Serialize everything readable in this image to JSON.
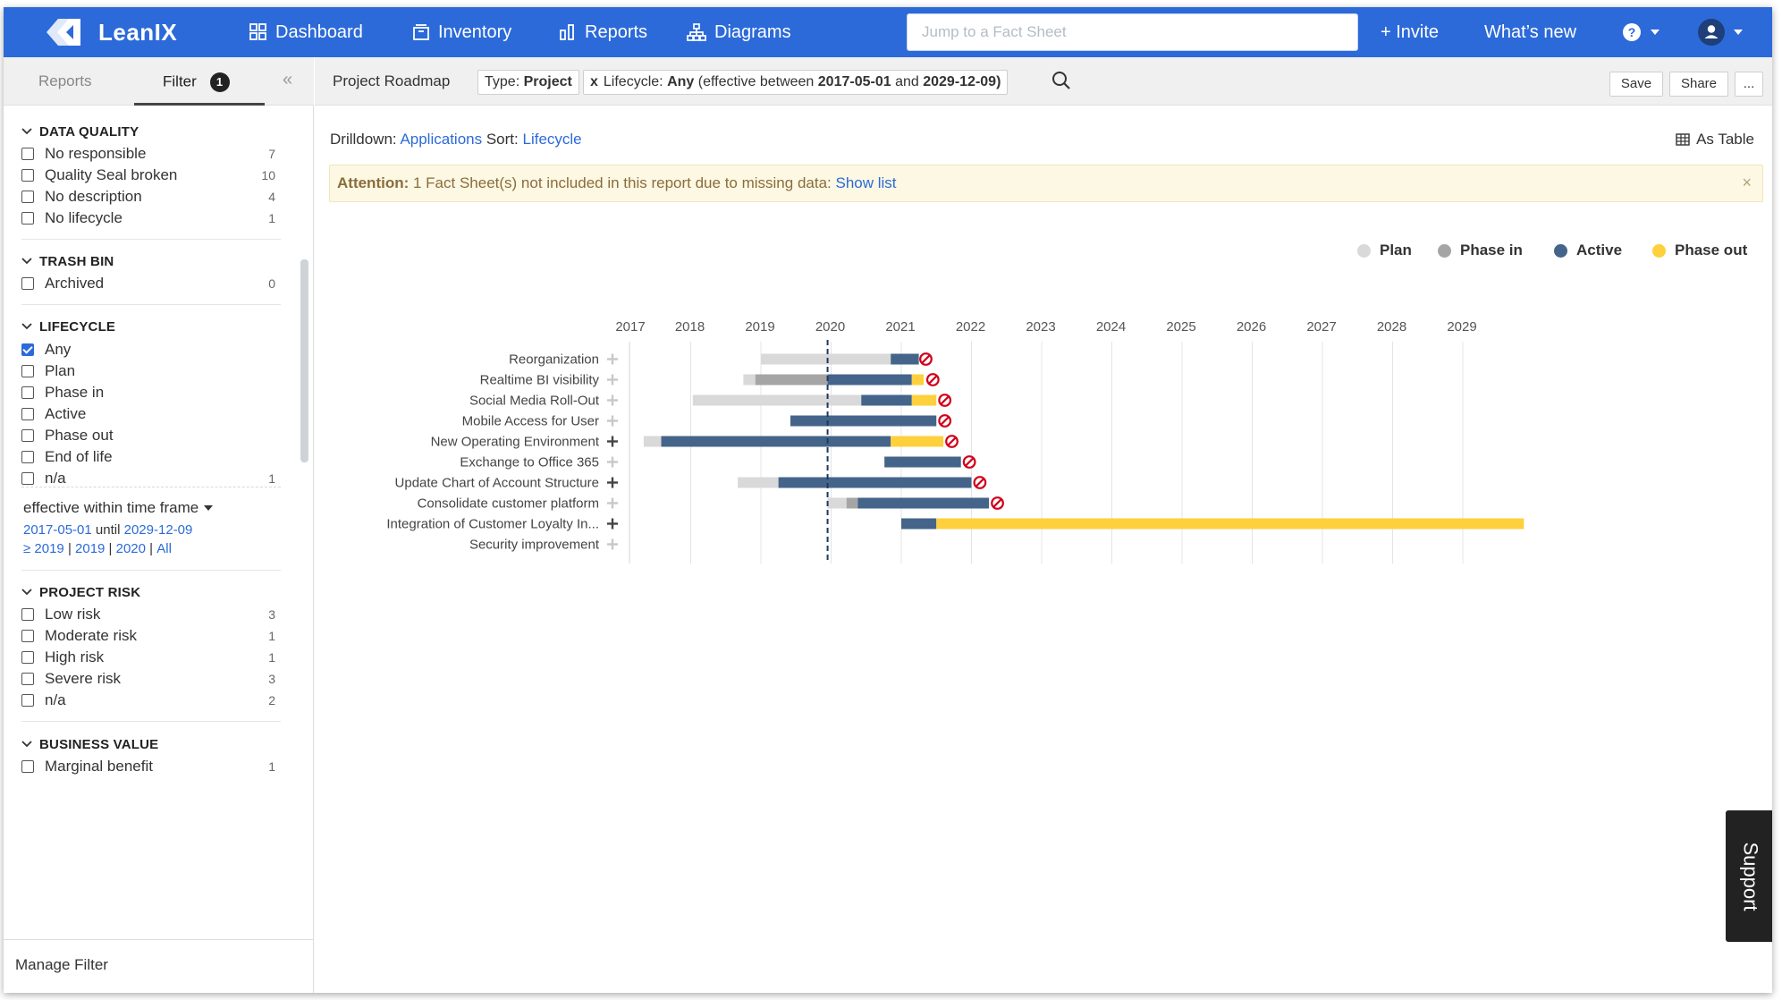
{
  "topnav": {
    "brand": "LeanIX",
    "items": [
      {
        "label": "Dashboard",
        "icon": "dashboard-icon"
      },
      {
        "label": "Inventory",
        "icon": "inventory-icon"
      },
      {
        "label": "Reports",
        "icon": "reports-icon"
      },
      {
        "label": "Diagrams",
        "icon": "diagrams-icon"
      }
    ],
    "search_placeholder": "Jump to a Fact Sheet",
    "invite": "+ Invite",
    "whats_new": "What’s new",
    "accent_color": "#2c6ad9"
  },
  "sidebar": {
    "tabs": {
      "reports": "Reports",
      "filter": "Filter",
      "filter_count": "1"
    },
    "sections": {
      "data_quality": {
        "title": "DATA QUALITY",
        "items": [
          {
            "label": "No responsible",
            "count": "7"
          },
          {
            "label": "Quality Seal broken",
            "count": "10"
          },
          {
            "label": "No description",
            "count": "4"
          },
          {
            "label": "No lifecycle",
            "count": "1"
          }
        ]
      },
      "trash_bin": {
        "title": "TRASH BIN",
        "items": [
          {
            "label": "Archived",
            "count": "0"
          }
        ]
      },
      "lifecycle": {
        "title": "LIFECYCLE",
        "items": [
          {
            "label": "Any",
            "count": "",
            "checked": true
          },
          {
            "label": "Plan",
            "count": ""
          },
          {
            "label": "Phase in",
            "count": ""
          },
          {
            "label": "Active",
            "count": ""
          },
          {
            "label": "Phase out",
            "count": ""
          },
          {
            "label": "End of life",
            "count": ""
          },
          {
            "label": "n/a",
            "count": "1"
          }
        ],
        "timeframe_label": "effective within time frame",
        "from": "2017-05-01",
        "until_word": "until",
        "to": "2029-12-09",
        "quick_links": [
          "≥ 2019",
          "2019",
          "2020",
          "All"
        ]
      },
      "project_risk": {
        "title": "PROJECT RISK",
        "items": [
          {
            "label": "Low risk",
            "count": "3"
          },
          {
            "label": "Moderate risk",
            "count": "1"
          },
          {
            "label": "High risk",
            "count": "1"
          },
          {
            "label": "Severe risk",
            "count": "3"
          },
          {
            "label": "n/a",
            "count": "2"
          }
        ]
      },
      "business_value": {
        "title": "BUSINESS VALUE",
        "items": [
          {
            "label": "Marginal benefit",
            "count": "1"
          }
        ]
      }
    },
    "manage_filter": "Manage Filter"
  },
  "subbar": {
    "title": "Project Roadmap",
    "type_label": "Type:",
    "type_value": "Project",
    "lifecycle_x": "x",
    "lifecycle_label": "Lifecycle:",
    "lifecycle_value": "Any",
    "effective_prefix": "(effective between",
    "effective_from": "2017-05-01",
    "effective_and": "and",
    "effective_to": "2029-12-09)",
    "save": "Save",
    "share": "Share",
    "more": "..."
  },
  "main": {
    "drilldown_label": "Drilldown:",
    "drilldown_value": "Applications",
    "sort_label": "Sort:",
    "sort_value": "Lifecycle",
    "as_table": "As Table",
    "attention_label": "Attention:",
    "attention_text": "1 Fact Sheet(s) not included in this report due to missing data:",
    "attention_link": "Show list",
    "attention_close": "×"
  },
  "support": "Support",
  "chart_data": {
    "type": "gantt",
    "years": [
      "2017",
      "2018",
      "2019",
      "2020",
      "2021",
      "2022",
      "2023",
      "2024",
      "2025",
      "2026",
      "2027",
      "2028",
      "2029"
    ],
    "today": 2019.95,
    "legend": [
      {
        "name": "Plan",
        "color": "#d9d9d9"
      },
      {
        "name": "Phase in",
        "color": "#a5a5a5"
      },
      {
        "name": "Active",
        "color": "#44648a"
      },
      {
        "name": "Phase out",
        "color": "#fdd03c"
      }
    ],
    "rows": [
      {
        "label": "Reorganization",
        "expand": "light",
        "segments": [
          {
            "phase": "Plan",
            "from": 2019.0,
            "to": 2020.85
          },
          {
            "phase": "Active",
            "from": 2020.85,
            "to": 2021.25
          }
        ],
        "end": 2021.35
      },
      {
        "label": "Realtime BI visibility",
        "expand": "light",
        "segments": [
          {
            "phase": "Plan",
            "from": 2018.75,
            "to": 2018.92
          },
          {
            "phase": "Phase in",
            "from": 2018.92,
            "to": 2019.95
          },
          {
            "phase": "Active",
            "from": 2019.95,
            "to": 2021.15
          },
          {
            "phase": "Phase out",
            "from": 2021.15,
            "to": 2021.32
          }
        ],
        "end": 2021.45
      },
      {
        "label": "Social Media Roll-Out",
        "expand": "light",
        "segments": [
          {
            "phase": "Plan",
            "from": 2018.03,
            "to": 2020.43
          },
          {
            "phase": "Active",
            "from": 2020.43,
            "to": 2021.15
          },
          {
            "phase": "Phase out",
            "from": 2021.15,
            "to": 2021.5
          }
        ],
        "end": 2021.62
      },
      {
        "label": "Mobile Access for User",
        "expand": "light",
        "segments": [
          {
            "phase": "Active",
            "from": 2019.42,
            "to": 2021.5
          }
        ],
        "end": 2021.62
      },
      {
        "label": "New Operating Environment",
        "expand": "dark",
        "segments": [
          {
            "phase": "Plan",
            "from": 2017.33,
            "to": 2017.58
          },
          {
            "phase": "Active",
            "from": 2017.58,
            "to": 2020.85
          },
          {
            "phase": "Phase out",
            "from": 2020.85,
            "to": 2021.6
          }
        ],
        "end": 2021.72
      },
      {
        "label": "Exchange to Office 365",
        "expand": "light",
        "segments": [
          {
            "phase": "Active",
            "from": 2020.76,
            "to": 2021.85
          }
        ],
        "end": 2021.97
      },
      {
        "label": "Update Chart of Account Structure",
        "expand": "dark",
        "segments": [
          {
            "phase": "Plan",
            "from": 2018.67,
            "to": 2019.25
          },
          {
            "phase": "Active",
            "from": 2019.25,
            "to": 2022.0
          }
        ],
        "end": 2022.12
      },
      {
        "label": "Consolidate customer platform",
        "expand": "light",
        "segments": [
          {
            "phase": "Plan",
            "from": 2019.95,
            "to": 2020.22
          },
          {
            "phase": "Phase in",
            "from": 2020.22,
            "to": 2020.38
          },
          {
            "phase": "Active",
            "from": 2020.38,
            "to": 2022.25
          }
        ],
        "end": 2022.37
      },
      {
        "label": "Integration of Customer Loyalty In...",
        "expand": "dark",
        "segments": [
          {
            "phase": "Active",
            "from": 2021.0,
            "to": 2021.5
          },
          {
            "phase": "Phase out",
            "from": 2021.5,
            "to": 2029.87
          }
        ],
        "end": null
      },
      {
        "label": "Security improvement",
        "expand": "light",
        "segments": [],
        "end": null
      }
    ]
  }
}
